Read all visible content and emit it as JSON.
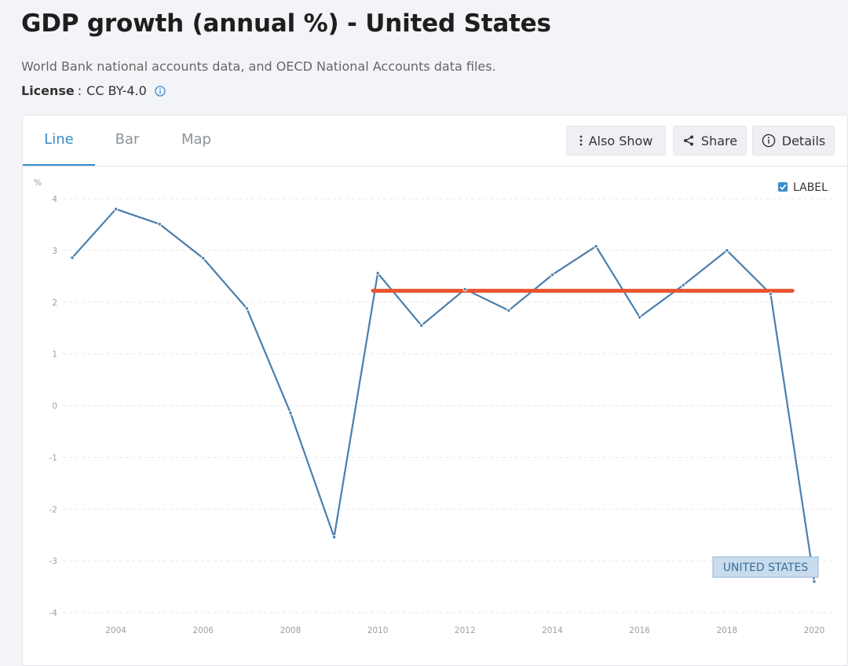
{
  "page": {
    "title": "GDP growth (annual %) - United States",
    "source": "World Bank national accounts data, and OECD National Accounts data files.",
    "license_label": "License",
    "license_separator": ":",
    "license_value": "CC BY-4.0"
  },
  "tabs": [
    {
      "label": "Line",
      "active": true
    },
    {
      "label": "Bar",
      "active": false
    },
    {
      "label": "Map",
      "active": false
    }
  ],
  "toolbar": {
    "also_show": "Also Show",
    "share": "Share",
    "details": "Details"
  },
  "legend": {
    "checkbox_label": "LABEL",
    "checked": true
  },
  "colors": {
    "series": "#4a7fad",
    "mean_line": "#e8532e",
    "accent": "#3a8bc7",
    "series_label_bg": "#c8dcee",
    "series_label_border": "#8fb3d3"
  },
  "chart_data": {
    "type": "line",
    "title": "GDP growth (annual %) - United States",
    "ylabel": "%",
    "xlabel": "",
    "ylim": [
      -4,
      4
    ],
    "xlim": [
      2003,
      2020
    ],
    "grid": true,
    "x_ticks": [
      "2004",
      "2006",
      "2008",
      "2010",
      "2012",
      "2014",
      "2016",
      "2018",
      "2020"
    ],
    "y_ticks": [
      "4",
      "3",
      "2",
      "1",
      "0",
      "-1",
      "-2",
      "-3",
      "-4"
    ],
    "series": [
      {
        "name": "UNITED STATES",
        "x": [
          2003,
          2004,
          2005,
          2006,
          2007,
          2008,
          2009,
          2010,
          2011,
          2012,
          2013,
          2014,
          2015,
          2016,
          2017,
          2018,
          2019,
          2020
        ],
        "values": [
          2.86,
          3.8,
          3.51,
          2.85,
          1.88,
          -0.14,
          -2.54,
          2.56,
          1.55,
          2.25,
          1.84,
          2.53,
          3.08,
          1.71,
          2.33,
          3.0,
          2.16,
          -3.4
        ]
      }
    ],
    "annotations": [
      {
        "type": "hline",
        "value": 2.22,
        "x_start": 2010,
        "x_end": 2019.5
      }
    ],
    "series_label": "UNITED STATES"
  }
}
